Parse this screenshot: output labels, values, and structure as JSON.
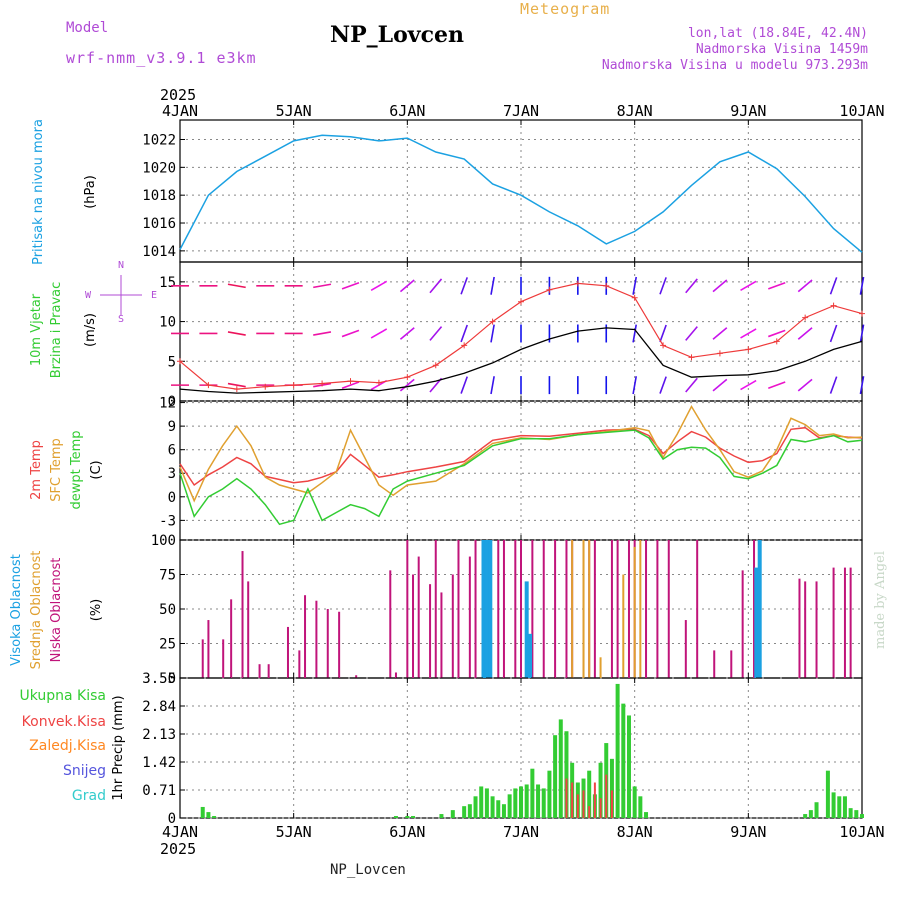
{
  "header": {
    "model_label": "Model",
    "model_name": "wrf-nmm_v3.9.1 e3km",
    "station": "NP_Lovcen",
    "meteogram": "Meteogram",
    "lonlat": "lon,lat (18.84E, 42.4N)",
    "elevation": "Nadmorska Visina 1459m",
    "elevation_model": "Nadmorska Visina u modelu 973.293m"
  },
  "footer": {
    "station": "NP_Lovcen",
    "watermark": "made by Angel"
  },
  "colors": {
    "pressure": "#1ba1e2",
    "speed_black": "#000000",
    "gust": "#ee3a3a",
    "t2m": "#ee4444",
    "sfc": "#e0a030",
    "dewpt": "#33cc33",
    "high_cloud": "#1ba1e2",
    "mid_cloud": "#e0a030",
    "low_cloud": "#c0147a",
    "precip_total": "#33cc33",
    "precip_conv": "#ee4444",
    "precip_frozen": "#ff8822",
    "snow": "#5555dd",
    "hail": "#33cccc"
  },
  "chart_data": [
    {
      "type": "line",
      "panel": "pressure",
      "title": "",
      "ylabel_name": "Pritisak na nivou mora",
      "ylabel_unit": "(hPa)",
      "year": "2025",
      "x_ticks": [
        "4JAN",
        "5JAN",
        "6JAN",
        "7JAN",
        "8JAN",
        "9JAN",
        "10JAN"
      ],
      "x_range_days": [
        0,
        6
      ],
      "ylim": [
        1013.2,
        1023.4
      ],
      "y_ticks": [
        "1022",
        "1020",
        "1018",
        "1016",
        "1014"
      ],
      "y_tick_values": [
        1022,
        1020,
        1018,
        1016,
        1014
      ],
      "x_days": [
        0,
        0.25,
        0.5,
        0.75,
        1.0,
        1.25,
        1.5,
        1.75,
        2.0,
        2.25,
        2.5,
        2.75,
        3.0,
        3.25,
        3.5,
        3.75,
        4.0,
        4.25,
        4.5,
        4.75,
        5.0,
        5.25,
        5.5,
        5.75,
        6.0
      ],
      "values": [
        1014.1,
        1018.0,
        1019.7,
        1020.8,
        1021.9,
        1022.3,
        1022.2,
        1021.9,
        1022.1,
        1021.1,
        1020.6,
        1018.8,
        1018.0,
        1016.8,
        1015.8,
        1014.5,
        1015.4,
        1016.8,
        1018.7,
        1020.4,
        1021.1,
        1019.9,
        1017.9,
        1015.6,
        1013.9
      ]
    },
    {
      "type": "line",
      "panel": "wind",
      "ylabel_name": "10m Vjetar",
      "ylabel_name2": "Brzina i Pravac",
      "ylabel_unit": "(m/s)",
      "compass": [
        "N",
        "E",
        "S",
        "W"
      ],
      "ylim": [
        0,
        17.5
      ],
      "y_ticks": [
        "15",
        "10",
        "5",
        "0"
      ],
      "y_tick_values": [
        15,
        10,
        5,
        0
      ],
      "x_days": [
        0,
        0.25,
        0.5,
        0.75,
        1.0,
        1.25,
        1.5,
        1.75,
        2.0,
        2.25,
        2.5,
        2.75,
        3.0,
        3.25,
        3.5,
        3.75,
        4.0,
        4.25,
        4.5,
        4.75,
        5.0,
        5.25,
        5.5,
        5.75,
        6.0
      ],
      "speed": [
        1.5,
        1.2,
        1.0,
        1.1,
        1.2,
        1.3,
        1.5,
        1.3,
        1.8,
        2.5,
        3.5,
        4.8,
        6.5,
        7.8,
        8.8,
        9.2,
        9.0,
        4.5,
        3.0,
        3.2,
        3.3,
        3.8,
        5.0,
        6.5,
        7.5
      ],
      "gust": [
        5.0,
        2.0,
        1.5,
        1.8,
        2.0,
        2.2,
        2.5,
        2.3,
        3.0,
        4.5,
        7.0,
        10.0,
        12.5,
        14.0,
        14.8,
        14.5,
        13.0,
        7.0,
        5.5,
        6.0,
        6.5,
        7.5,
        10.5,
        12.0,
        11.0
      ],
      "wind_dir_deg": [
        270,
        270,
        280,
        270,
        270,
        260,
        250,
        240,
        230,
        220,
        200,
        190,
        180,
        180,
        180,
        180,
        190,
        200,
        220,
        230,
        240,
        250,
        230,
        200,
        190
      ]
    },
    {
      "type": "line",
      "panel": "temperature",
      "ylabel_name": "2m Temp",
      "ylabel_name2": "SFC Temp",
      "ylabel_name3": "dewpt Temp",
      "ylabel_unit": "(C)",
      "ylim": [
        -5.5,
        12.2
      ],
      "y_ticks": [
        "12",
        "9",
        "6",
        "3",
        "0",
        "-3"
      ],
      "y_tick_values": [
        12,
        9,
        6,
        3,
        0,
        -3
      ],
      "x_days": [
        0,
        0.125,
        0.25,
        0.375,
        0.5,
        0.625,
        0.75,
        0.875,
        1.0,
        1.125,
        1.25,
        1.375,
        1.5,
        1.625,
        1.75,
        1.875,
        2.0,
        2.25,
        2.5,
        2.75,
        3.0,
        3.25,
        3.5,
        3.75,
        4.0,
        4.125,
        4.25,
        4.375,
        4.5,
        4.625,
        4.75,
        4.875,
        5.0,
        5.125,
        5.25,
        5.375,
        5.5,
        5.625,
        5.75,
        5.875,
        6.0
      ],
      "series": [
        {
          "name": "2m Temp",
          "values": [
            4.2,
            1.5,
            2.8,
            3.8,
            5.0,
            4.2,
            2.6,
            2.2,
            1.8,
            2.0,
            2.5,
            3.2,
            5.4,
            4.0,
            2.5,
            2.8,
            3.2,
            3.8,
            4.5,
            7.2,
            7.8,
            7.7,
            8.1,
            8.5,
            8.6,
            7.8,
            5.5,
            7.0,
            8.3,
            7.6,
            6.2,
            5.2,
            4.4,
            4.6,
            5.5,
            8.6,
            8.8,
            7.5,
            7.8,
            7.6,
            7.5
          ]
        },
        {
          "name": "SFC Temp",
          "values": [
            3.8,
            -0.5,
            3.5,
            6.5,
            9.0,
            6.5,
            2.5,
            1.5,
            1.0,
            0.5,
            1.8,
            3.2,
            8.5,
            5.0,
            1.5,
            0.2,
            1.5,
            2.0,
            4.2,
            6.8,
            7.5,
            7.3,
            7.9,
            8.3,
            8.8,
            8.4,
            5.0,
            8.0,
            11.5,
            8.5,
            6.0,
            3.2,
            2.5,
            3.3,
            6.0,
            10.0,
            9.2,
            7.8,
            8.0,
            7.5,
            7.6
          ]
        },
        {
          "name": "dewpt Temp",
          "values": [
            3.0,
            -2.5,
            0.0,
            1.0,
            2.3,
            1.0,
            -1.0,
            -3.5,
            -3.0,
            1.0,
            -3.0,
            -2.0,
            -1.0,
            -1.5,
            -2.5,
            1.0,
            2.0,
            3.0,
            4.0,
            6.5,
            7.4,
            7.4,
            7.9,
            8.2,
            8.5,
            7.5,
            4.8,
            6.0,
            6.3,
            6.2,
            5.0,
            2.6,
            2.3,
            3.0,
            4.0,
            7.3,
            7.0,
            7.4,
            7.8,
            7.0,
            7.2
          ]
        }
      ]
    },
    {
      "type": "bar",
      "panel": "clouds",
      "ylabel_name": "Visoka Oblacnost",
      "ylabel_name2": "Srednja Oblacnost",
      "ylabel_name3": "Niska Oblacnost",
      "ylabel_unit": "(%)",
      "ylim": [
        0,
        100
      ],
      "y_ticks": [
        "100",
        "75",
        "50",
        "25",
        "0"
      ],
      "y_tick_values": [
        100,
        75,
        50,
        25,
        0
      ],
      "low_x_days": [
        0.2,
        0.25,
        0.38,
        0.45,
        0.55,
        0.6,
        0.7,
        0.78,
        0.95,
        1.05,
        1.1,
        1.2,
        1.3,
        1.4,
        1.55,
        1.85,
        1.9,
        2.0,
        2.05,
        2.1,
        2.2,
        2.25,
        2.3,
        2.4,
        2.45,
        2.55,
        2.6,
        2.7,
        2.8,
        2.85,
        2.95,
        3.0,
        3.1,
        3.2,
        3.3,
        3.4,
        3.45,
        3.55,
        3.6,
        3.65,
        3.8,
        3.85,
        3.95,
        4.0,
        4.1,
        4.2,
        4.3,
        4.45,
        4.55,
        4.7,
        4.85,
        4.95,
        5.05,
        5.1,
        5.45,
        5.5,
        5.6,
        5.75,
        5.85,
        5.9
      ],
      "low_values": [
        28,
        42,
        28,
        57,
        92,
        70,
        10,
        10,
        37,
        20,
        60,
        56,
        50,
        48,
        2,
        78,
        4,
        100,
        75,
        88,
        68,
        100,
        62,
        75,
        100,
        88,
        100,
        90,
        100,
        100,
        100,
        100,
        100,
        100,
        100,
        100,
        100,
        100,
        100,
        100,
        100,
        100,
        100,
        100,
        100,
        100,
        100,
        42,
        100,
        20,
        20,
        78,
        100,
        100,
        72,
        70,
        70,
        80,
        80,
        80
      ],
      "mid_x_days": [
        3.45,
        3.55,
        3.6,
        3.7,
        3.9,
        4.0,
        4.05
      ],
      "mid_values": [
        100,
        100,
        100,
        15,
        75,
        95,
        100
      ],
      "high_x_days": [
        2.67,
        2.7,
        2.73,
        3.05,
        3.08,
        5.07,
        5.1
      ],
      "high_values": [
        100,
        100,
        100,
        70,
        32,
        80,
        100
      ]
    },
    {
      "type": "bar",
      "panel": "precipitation",
      "ylabel_unit": "1hr Precip (mm)",
      "legend": [
        "Ukupna Kisa",
        "Konvek.Kisa",
        "Zaledj.Kisa",
        "Snijeg",
        "Grad"
      ],
      "ylim": [
        0,
        3.55
      ],
      "y_ticks": [
        "3.55",
        "2.84",
        "2.13",
        "1.42",
        "0.71",
        "0"
      ],
      "y_tick_values": [
        3.55,
        2.84,
        2.13,
        1.42,
        0.71,
        0
      ],
      "x_ticks": [
        "4JAN",
        "5JAN",
        "6JAN",
        "7JAN",
        "8JAN",
        "9JAN",
        "10JAN"
      ],
      "year": "2025",
      "x_days": [
        0.2,
        0.25,
        0.3,
        1.9,
        2.0,
        2.05,
        2.3,
        2.4,
        2.5,
        2.55,
        2.6,
        2.65,
        2.7,
        2.75,
        2.8,
        2.85,
        2.9,
        2.95,
        3.0,
        3.05,
        3.1,
        3.15,
        3.2,
        3.25,
        3.3,
        3.35,
        3.4,
        3.45,
        3.5,
        3.55,
        3.6,
        3.65,
        3.7,
        3.75,
        3.8,
        3.85,
        3.9,
        3.95,
        4.0,
        4.05,
        4.1,
        5.5,
        5.55,
        5.6,
        5.7,
        5.75,
        5.8,
        5.85,
        5.9,
        5.95,
        6.0
      ],
      "total": [
        0.28,
        0.15,
        0.05,
        0.05,
        0.05,
        0.05,
        0.1,
        0.2,
        0.3,
        0.35,
        0.55,
        0.8,
        0.75,
        0.55,
        0.45,
        0.35,
        0.6,
        0.75,
        0.8,
        0.85,
        1.25,
        0.85,
        0.75,
        1.2,
        2.1,
        2.5,
        2.2,
        1.4,
        0.9,
        1.0,
        1.2,
        0.6,
        1.4,
        1.9,
        1.5,
        3.4,
        2.9,
        2.6,
        0.8,
        0.55,
        0.15,
        0.1,
        0.2,
        0.4,
        1.2,
        0.65,
        0.55,
        0.55,
        0.25,
        0.2,
        0.1
      ],
      "convective_x_days": [
        3.4,
        3.45,
        3.5,
        3.55,
        3.6,
        3.65,
        3.7,
        3.75,
        3.8
      ],
      "convective": [
        1.0,
        0.9,
        0.6,
        0.7,
        0.3,
        0.9,
        0.5,
        1.1,
        0.7
      ]
    }
  ]
}
